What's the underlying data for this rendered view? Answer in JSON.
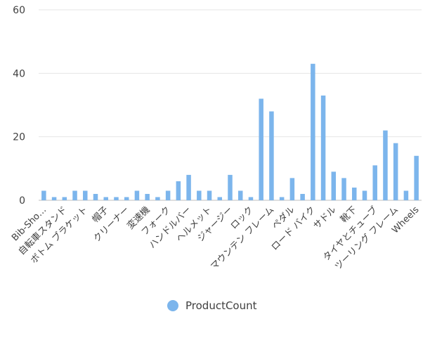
{
  "chart_data": {
    "type": "bar",
    "categories": [
      "Bib-Sho…",
      "",
      "自転車スタンド",
      "",
      "ボトム ブラケット",
      "",
      "帽子",
      "",
      "クリーナー",
      "",
      "変速機",
      "",
      "フォーク",
      "",
      "ハンドルバー",
      "",
      "ヘルメット",
      "",
      "ジャージー",
      "",
      "ロック",
      "",
      "マウンテン フレーム",
      "",
      "ペダル",
      "",
      "ロード バイク",
      "",
      "サドル",
      "",
      "靴下",
      "",
      "タイヤとチューブ",
      "",
      "ツーリング フレーム",
      "",
      "Wheels"
    ],
    "series": [
      {
        "name": "ProductCount",
        "color": "#7cb5ec",
        "values": [
          3,
          1,
          1,
          3,
          3,
          2,
          1,
          1,
          1,
          3,
          2,
          1,
          3,
          6,
          8,
          3,
          3,
          1,
          8,
          3,
          1,
          32,
          28,
          1,
          7,
          2,
          43,
          33,
          9,
          7,
          4,
          3,
          11,
          22,
          18,
          3,
          14
        ]
      }
    ],
    "ylim": [
      0,
      60
    ],
    "yticks": [
      0,
      20,
      40,
      60
    ],
    "grid": true,
    "legend_position": "bottom-center"
  }
}
